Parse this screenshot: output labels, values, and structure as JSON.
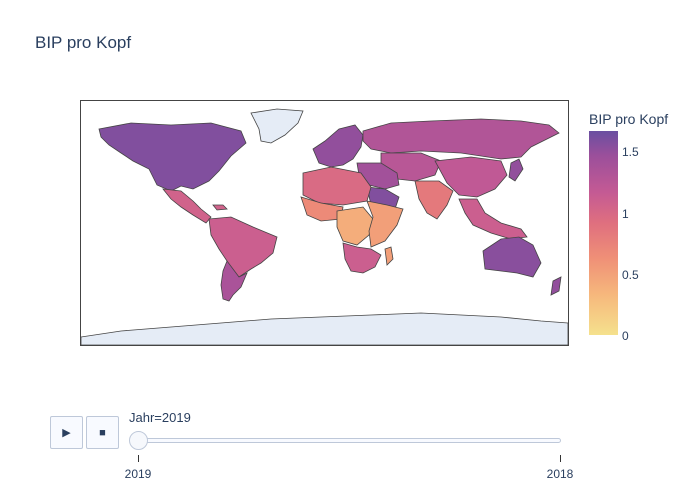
{
  "chart_data": {
    "type": "choropleth",
    "title": "BIP pro Kopf",
    "colorbar": {
      "title": "BIP pro Kopf",
      "ticks": [
        "0",
        "0.5",
        "1",
        "1.5"
      ],
      "range": [
        0,
        1.68
      ],
      "colors": [
        "#f5e18d",
        "#f6b77c",
        "#ef8f77",
        "#df6f7f",
        "#c45a94",
        "#9b4f9b",
        "#6a4fa1"
      ]
    },
    "no_data_color": "#e5ecf6",
    "regions": [
      {
        "name": "North America",
        "value": 1.55
      },
      {
        "name": "Central America",
        "value": 1.0
      },
      {
        "name": "South America",
        "value": 1.05
      },
      {
        "name": "Southern Cone",
        "value": 1.3
      },
      {
        "name": "Greenland",
        "value": null
      },
      {
        "name": "Western Europe",
        "value": 1.45
      },
      {
        "name": "Russia",
        "value": 1.25
      },
      {
        "name": "Middle East",
        "value": 1.35
      },
      {
        "name": "Arabian Peninsula",
        "value": 1.55
      },
      {
        "name": "North Africa",
        "value": 0.9
      },
      {
        "name": "West Africa",
        "value": 0.6
      },
      {
        "name": "Central Africa",
        "value": 0.35
      },
      {
        "name": "East Africa",
        "value": 0.45
      },
      {
        "name": "Southern Africa",
        "value": 1.05
      },
      {
        "name": "Central Asia",
        "value": 1.2
      },
      {
        "name": "South Asia",
        "value": 0.75
      },
      {
        "name": "China",
        "value": 1.15
      },
      {
        "name": "Southeast Asia",
        "value": 1.05
      },
      {
        "name": "Japan",
        "value": 1.45
      },
      {
        "name": "Australia",
        "value": 1.5
      },
      {
        "name": "New Zealand",
        "value": 1.45
      },
      {
        "name": "Antarctica",
        "value": null
      }
    ]
  },
  "slider": {
    "current_label": "Jahr=2019",
    "steps": [
      "2019",
      "2018"
    ]
  },
  "controls": {
    "play_icon": "▶",
    "stop_icon": "■"
  }
}
